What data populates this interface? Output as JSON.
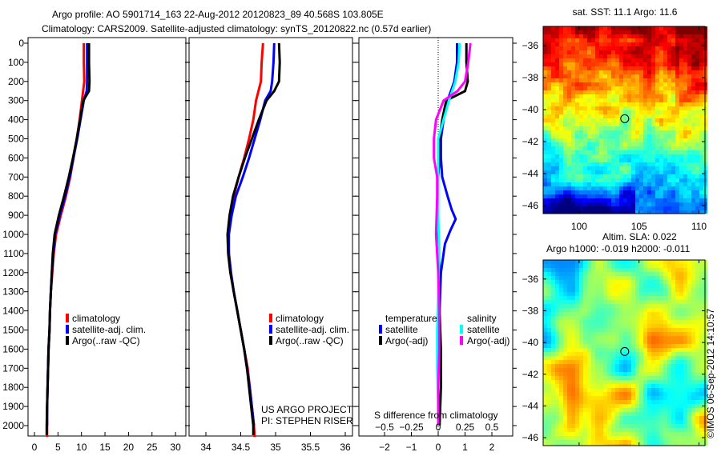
{
  "title": {
    "line1": "Argo profile: AO 5901714_163 22-Aug-2012 20120823_89 40.568S 103.805E",
    "line2": "Climatology: CARS2009. Satellite-adjusted climatology: synTS_20120822.nc (0.57d earlier)"
  },
  "colors": {
    "climatology": "#ff0000",
    "satellite": "#0000ff",
    "argo": "#000000",
    "sal_satellite": "#00ffff",
    "sal_argo": "#ff00ff"
  },
  "chart_data": [
    {
      "type": "line",
      "name": "temperature-profile",
      "xlim": [
        -2,
        32
      ],
      "ylim": [
        2060,
        -30
      ],
      "xticks": [
        0,
        5,
        10,
        15,
        20,
        25,
        30
      ],
      "yticks": [
        0,
        100,
        200,
        300,
        400,
        500,
        600,
        700,
        800,
        900,
        1000,
        1100,
        1200,
        1300,
        1400,
        1500,
        1600,
        1700,
        1800,
        1900,
        2000
      ],
      "legend": [
        "climatology",
        "satellite-adj. clim.",
        "Argo(..raw -QC)"
      ],
      "series": [
        {
          "name": "climatology",
          "color": "#ff0000",
          "points": [
            [
              0,
              10.5
            ],
            [
              100,
              10.5
            ],
            [
              200,
              10.6
            ],
            [
              300,
              10.1
            ],
            [
              400,
              9.6
            ],
            [
              500,
              9.0
            ],
            [
              600,
              8.3
            ],
            [
              700,
              7.6
            ],
            [
              800,
              6.7
            ],
            [
              900,
              5.6
            ],
            [
              1000,
              4.6
            ],
            [
              1100,
              4.1
            ],
            [
              1200,
              3.8
            ],
            [
              1300,
              3.5
            ],
            [
              1400,
              3.3
            ],
            [
              1500,
              3.2
            ],
            [
              1600,
              3.0
            ],
            [
              1700,
              2.9
            ],
            [
              1800,
              2.8
            ],
            [
              1900,
              2.7
            ],
            [
              2000,
              2.7
            ],
            [
              2060,
              2.7
            ]
          ]
        },
        {
          "name": "satellite-adj. clim.",
          "color": "#0000ff",
          "points": [
            [
              0,
              11.2
            ],
            [
              100,
              11.2
            ],
            [
              200,
              11.2
            ],
            [
              250,
              11.1
            ],
            [
              300,
              10.5
            ],
            [
              400,
              9.8
            ],
            [
              500,
              9.1
            ],
            [
              600,
              8.3
            ],
            [
              700,
              7.5
            ],
            [
              800,
              6.5
            ],
            [
              900,
              5.4
            ],
            [
              1000,
              4.4
            ],
            [
              1100,
              4.0
            ],
            [
              1200,
              3.7
            ],
            [
              1300,
              3.5
            ],
            [
              1400,
              3.3
            ],
            [
              1500,
              3.2
            ],
            [
              1600,
              3.0
            ],
            [
              1700,
              2.9
            ],
            [
              1800,
              2.8
            ],
            [
              1900,
              2.7
            ],
            [
              2000,
              2.7
            ]
          ]
        },
        {
          "name": "Argo(..raw -QC)",
          "color": "#000000",
          "points": [
            [
              0,
              11.6
            ],
            [
              100,
              11.6
            ],
            [
              200,
              11.7
            ],
            [
              250,
              11.6
            ],
            [
              300,
              10.4
            ],
            [
              400,
              9.7
            ],
            [
              500,
              9.0
            ],
            [
              600,
              8.2
            ],
            [
              700,
              7.3
            ],
            [
              800,
              6.3
            ],
            [
              900,
              5.2
            ],
            [
              1000,
              4.3
            ],
            [
              1100,
              3.9
            ],
            [
              1200,
              3.7
            ],
            [
              1300,
              3.5
            ],
            [
              1400,
              3.3
            ],
            [
              1500,
              3.2
            ],
            [
              1600,
              3.0
            ],
            [
              1700,
              2.9
            ],
            [
              1800,
              2.8
            ],
            [
              1900,
              2.7
            ],
            [
              2000,
              2.6
            ],
            [
              2050,
              2.6
            ]
          ]
        }
      ]
    },
    {
      "type": "line",
      "name": "salinity-profile",
      "xlim": [
        33.8,
        36.05
      ],
      "ylim": [
        2060,
        -30
      ],
      "xticks": [
        34,
        34.5,
        35,
        35.5,
        36
      ],
      "legend": [
        "climatology",
        "satellite-adj. clim.",
        "Argo(..raw -QC)"
      ],
      "annotation": [
        "US ARGO PROJECT",
        "PI: STEPHEN RISER"
      ],
      "series": [
        {
          "name": "climatology",
          "color": "#ff0000",
          "points": [
            [
              0,
              34.82
            ],
            [
              100,
              34.8
            ],
            [
              200,
              34.79
            ],
            [
              300,
              34.72
            ],
            [
              400,
              34.68
            ],
            [
              500,
              34.62
            ],
            [
              600,
              34.55
            ],
            [
              700,
              34.47
            ],
            [
              800,
              34.4
            ],
            [
              900,
              34.35
            ],
            [
              1000,
              34.32
            ],
            [
              1100,
              34.33
            ],
            [
              1200,
              34.36
            ],
            [
              1300,
              34.4
            ],
            [
              1400,
              34.45
            ],
            [
              1500,
              34.5
            ],
            [
              1600,
              34.55
            ],
            [
              1700,
              34.6
            ],
            [
              1800,
              34.63
            ],
            [
              1900,
              34.66
            ],
            [
              2000,
              34.69
            ],
            [
              2060,
              34.7
            ]
          ]
        },
        {
          "name": "satellite-adj. clim.",
          "color": "#0000ff",
          "points": [
            [
              0,
              34.98
            ],
            [
              100,
              34.97
            ],
            [
              200,
              34.95
            ],
            [
              250,
              34.93
            ],
            [
              300,
              34.85
            ],
            [
              400,
              34.78
            ],
            [
              500,
              34.7
            ],
            [
              600,
              34.62
            ],
            [
              700,
              34.53
            ],
            [
              800,
              34.43
            ],
            [
              900,
              34.37
            ],
            [
              1000,
              34.33
            ],
            [
              1100,
              34.33
            ],
            [
              1200,
              34.36
            ],
            [
              1300,
              34.4
            ],
            [
              1400,
              34.45
            ],
            [
              1500,
              34.5
            ],
            [
              1600,
              34.55
            ],
            [
              1700,
              34.59
            ],
            [
              1800,
              34.63
            ],
            [
              1900,
              34.66
            ],
            [
              2000,
              34.69
            ]
          ]
        },
        {
          "name": "Argo(..raw -QC)",
          "color": "#000000",
          "points": [
            [
              0,
              35.05
            ],
            [
              100,
              35.06
            ],
            [
              200,
              35.05
            ],
            [
              250,
              34.98
            ],
            [
              300,
              34.87
            ],
            [
              400,
              34.76
            ],
            [
              500,
              34.66
            ],
            [
              600,
              34.56
            ],
            [
              700,
              34.47
            ],
            [
              800,
              34.39
            ],
            [
              900,
              34.34
            ],
            [
              1000,
              34.31
            ],
            [
              1100,
              34.32
            ],
            [
              1200,
              34.35
            ],
            [
              1300,
              34.4
            ],
            [
              1400,
              34.45
            ],
            [
              1500,
              34.5
            ],
            [
              1600,
              34.55
            ],
            [
              1700,
              34.59
            ],
            [
              1800,
              34.62
            ],
            [
              1900,
              34.65
            ],
            [
              2000,
              34.68
            ],
            [
              2050,
              34.68
            ]
          ]
        }
      ]
    },
    {
      "type": "line",
      "name": "difference-profile",
      "xlim": [
        -3,
        3.1
      ],
      "ylim": [
        2060,
        -30
      ],
      "xticks": [
        -2,
        -1,
        0,
        1,
        2
      ],
      "s_xticks_labels": [
        "-0.5",
        "-0.25",
        "0",
        "0.25",
        "0.5"
      ],
      "s_axis_label": "S difference from climatology",
      "legend_temperature": {
        "heading": "temperature",
        "items": [
          "satellite",
          "Argo(-adj)"
        ]
      },
      "legend_salinity": {
        "heading": "salinity",
        "items": [
          "satellite",
          "Argo(-adj)"
        ]
      },
      "series": [
        {
          "name": "temperature satellite",
          "color": "#0000ff",
          "points": [
            [
              0,
              0.7
            ],
            [
              100,
              0.7
            ],
            [
              200,
              0.6
            ],
            [
              300,
              0.35
            ],
            [
              400,
              0.2
            ],
            [
              500,
              0.1
            ],
            [
              600,
              0.1
            ],
            [
              700,
              0.15
            ],
            [
              800,
              0.35
            ],
            [
              870,
              0.5
            ],
            [
              920,
              0.65
            ],
            [
              980,
              0.45
            ],
            [
              1050,
              0.25
            ],
            [
              1200,
              0.1
            ],
            [
              1400,
              0.05
            ],
            [
              1600,
              0.0
            ],
            [
              1800,
              0.0
            ],
            [
              2000,
              0.0
            ]
          ]
        },
        {
          "name": "temperature Argo(-adj)",
          "color": "#000000",
          "points": [
            [
              0,
              1.05
            ],
            [
              100,
              1.05
            ],
            [
              200,
              1.1
            ],
            [
              250,
              1.0
            ],
            [
              300,
              0.3
            ],
            [
              400,
              0.15
            ],
            [
              500,
              0.05
            ],
            [
              600,
              0.05
            ],
            [
              700,
              0.0
            ],
            [
              800,
              0.0
            ],
            [
              900,
              -0.05
            ],
            [
              1000,
              0.0
            ],
            [
              1200,
              0.05
            ],
            [
              1400,
              0.05
            ],
            [
              1600,
              0.1
            ],
            [
              1800,
              0.1
            ],
            [
              2000,
              0.05
            ]
          ]
        },
        {
          "name": "salinity satellite",
          "color": "#00ffff",
          "points": [
            [
              0,
              0.2
            ],
            [
              100,
              0.19
            ],
            [
              200,
              0.16
            ],
            [
              300,
              0.1
            ],
            [
              400,
              0.05
            ],
            [
              500,
              0.0
            ],
            [
              700,
              0.0
            ],
            [
              900,
              0.0
            ],
            [
              1100,
              0.01
            ],
            [
              1300,
              0.0
            ],
            [
              1500,
              -0.01
            ],
            [
              1700,
              -0.01
            ],
            [
              1900,
              0.0
            ],
            [
              2000,
              0.0
            ]
          ]
        },
        {
          "name": "salinity Argo(-adj)",
          "color": "#ff00ff",
          "points": [
            [
              0,
              0.3
            ],
            [
              100,
              0.28
            ],
            [
              200,
              0.25
            ],
            [
              250,
              0.18
            ],
            [
              300,
              0.05
            ],
            [
              400,
              -0.02
            ],
            [
              500,
              -0.04
            ],
            [
              600,
              -0.04
            ],
            [
              700,
              -0.01
            ],
            [
              800,
              -0.01
            ],
            [
              1000,
              -0.02
            ],
            [
              1200,
              0.0
            ],
            [
              1400,
              0.01
            ],
            [
              1600,
              0.01
            ],
            [
              1800,
              0.0
            ],
            [
              2000,
              0.0
            ]
          ]
        }
      ]
    },
    {
      "type": "heatmap",
      "name": "sst-map",
      "title": "sat. SST: 11.1 Argo: 11.6",
      "xticks": [
        100,
        105,
        110
      ],
      "yticks": [
        -36,
        -38,
        -40,
        -42,
        -44,
        -46
      ],
      "xlim": [
        97,
        110.5
      ],
      "ylim": [
        -46.5,
        -34.8
      ],
      "marker": {
        "lon": 103.805,
        "lat": -40.568
      }
    },
    {
      "type": "heatmap",
      "name": "sla-map",
      "title": "Altim. SLA: 0.022",
      "subtitle": "Argo h1000: -0.019 h2000: -0.011",
      "yticks": [
        -36,
        -38,
        -40,
        -42,
        -44,
        -46
      ],
      "xlim": [
        97,
        110.5
      ],
      "ylim": [
        -46.5,
        -34.8
      ],
      "marker": {
        "lon": 103.805,
        "lat": -40.568
      }
    }
  ],
  "credit": "©IMOS 06-Sep-2012 14:10:57"
}
